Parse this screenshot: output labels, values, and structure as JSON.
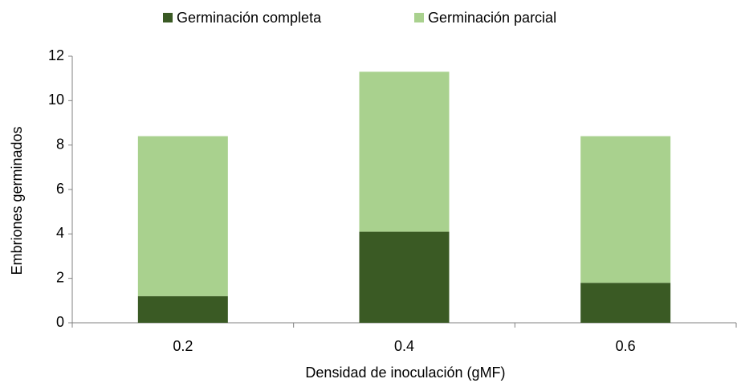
{
  "chart_data": {
    "type": "stacked_bar",
    "x_label": "Densidad de inoculación (gMF)",
    "y_label": "Embriones germinados",
    "categories": [
      "0.2",
      "0.4",
      "0.6"
    ],
    "series": [
      {
        "name": "Germinación completa",
        "color": "#3a5a24",
        "values": [
          1.2,
          4.1,
          1.8
        ]
      },
      {
        "name": "Germinación parcial",
        "color": "#a9d18e",
        "values": [
          7.2,
          7.2,
          6.6
        ]
      }
    ],
    "ylim": [
      0,
      12
    ],
    "yticks": [
      0,
      2,
      4,
      6,
      8,
      10,
      12
    ],
    "legend": "top",
    "grid": false
  }
}
